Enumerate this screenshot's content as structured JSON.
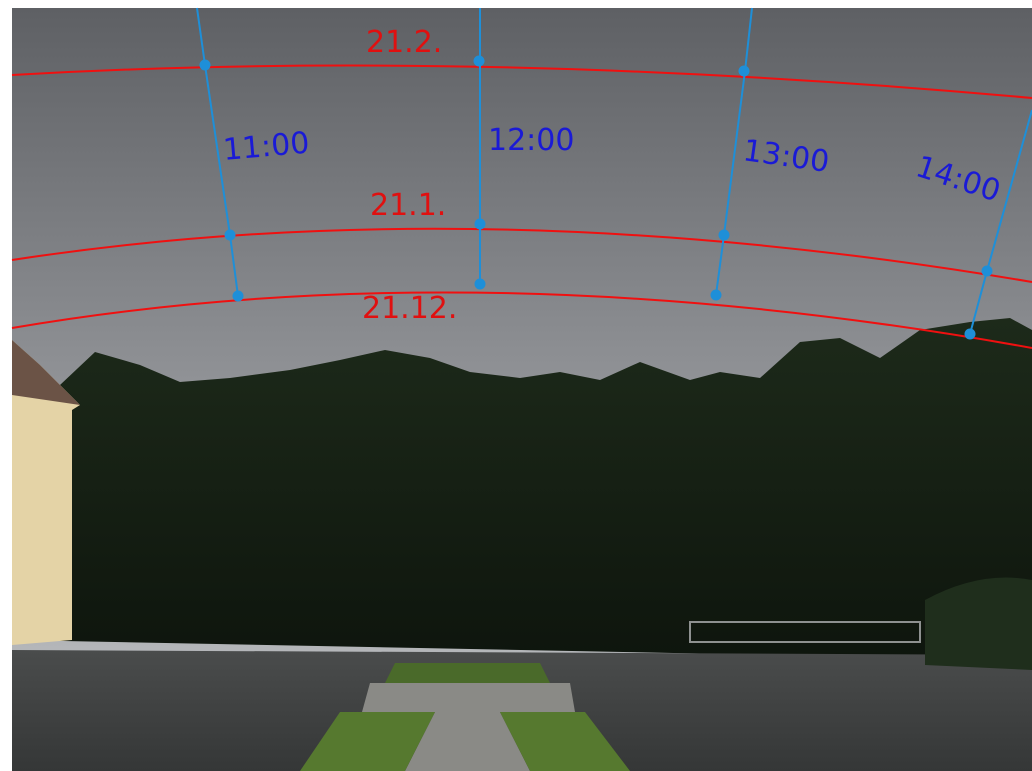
{
  "image": {
    "date_curves": [
      {
        "label": "21.2."
      },
      {
        "label": "21.1."
      },
      {
        "label": "21.12."
      }
    ],
    "hour_lines": [
      {
        "label": "11:00"
      },
      {
        "label": "12:00"
      },
      {
        "label": "13:00"
      },
      {
        "label": "14:00"
      }
    ]
  }
}
